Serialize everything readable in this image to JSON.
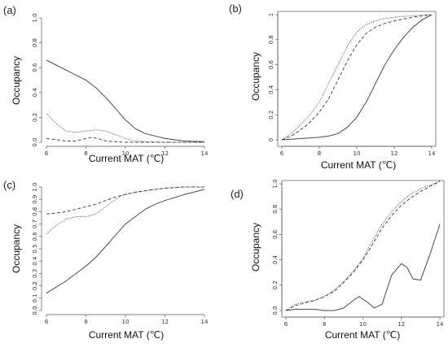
{
  "chart_data": [
    {
      "panel_label": "(a)",
      "type": "line",
      "xlabel": "Current MAT (℃)",
      "ylabel": "Occupancy",
      "xlim": [
        6,
        14
      ],
      "ylim": [
        0,
        1
      ],
      "xticks": [
        6,
        8,
        10,
        12,
        14
      ],
      "yticks": [
        0,
        0.2,
        0.4,
        0.6,
        0.8,
        1.0
      ],
      "ytick_labels": [
        "0.0",
        "0.2",
        "0.4",
        "0.6",
        "0.8",
        "1.0"
      ],
      "box": false,
      "series": [
        {
          "style": "solid",
          "x": [
            6,
            7,
            8,
            8.5,
            9,
            9.5,
            10,
            10.5,
            11,
            11.5,
            12,
            13,
            14
          ],
          "y": [
            0.66,
            0.58,
            0.5,
            0.44,
            0.36,
            0.27,
            0.18,
            0.11,
            0.07,
            0.05,
            0.03,
            0.01,
            0.005
          ]
        },
        {
          "style": "dotted",
          "x": [
            6,
            6.5,
            7,
            7.5,
            8,
            8.5,
            9,
            9.5,
            10,
            10.5,
            11,
            12,
            13,
            14
          ],
          "y": [
            0.23,
            0.15,
            0.09,
            0.08,
            0.09,
            0.1,
            0.09,
            0.06,
            0.03,
            0.01,
            0.005,
            0,
            0,
            0
          ]
        },
        {
          "style": "dashed",
          "x": [
            6,
            6.5,
            7,
            7.5,
            8,
            8.3,
            8.6,
            9,
            9.5,
            10,
            11,
            12,
            14
          ],
          "y": [
            0.03,
            0.02,
            0.01,
            0.01,
            0.03,
            0.04,
            0.03,
            0.01,
            0.005,
            0,
            0,
            0,
            0
          ]
        }
      ]
    },
    {
      "panel_label": "(b)",
      "type": "line",
      "xlabel": "Current MAT (℃)",
      "ylabel": "Occupancy",
      "xlim": [
        6,
        14
      ],
      "ylim": [
        0,
        1
      ],
      "xticks": [
        6,
        8,
        10,
        12,
        14
      ],
      "yticks": [
        0,
        0.2,
        0.4,
        0.6,
        0.8,
        1.0
      ],
      "ytick_labels": [
        "0",
        "0.2",
        "0.4",
        "0.6",
        "0.8",
        "1"
      ],
      "box": true,
      "series": [
        {
          "style": "solid",
          "x": [
            6,
            7,
            8,
            8.5,
            9,
            9.5,
            10,
            10.5,
            11,
            11.5,
            12,
            12.5,
            13,
            13.5,
            14
          ],
          "y": [
            0.0,
            0.01,
            0.02,
            0.03,
            0.05,
            0.1,
            0.18,
            0.3,
            0.45,
            0.6,
            0.72,
            0.82,
            0.9,
            0.96,
            1.0
          ]
        },
        {
          "style": "dotted",
          "x": [
            6,
            6.5,
            7,
            7.5,
            8,
            8.5,
            9,
            9.5,
            10,
            10.5,
            11,
            11.5,
            12,
            13,
            14
          ],
          "y": [
            0.0,
            0.05,
            0.12,
            0.2,
            0.3,
            0.45,
            0.6,
            0.75,
            0.86,
            0.92,
            0.95,
            0.97,
            0.98,
            0.99,
            1.0
          ]
        },
        {
          "style": "dashed",
          "x": [
            6,
            6.5,
            7,
            7.5,
            8,
            8.5,
            9,
            9.5,
            10,
            10.5,
            11,
            11.5,
            12,
            13,
            14
          ],
          "y": [
            0.0,
            0.03,
            0.08,
            0.14,
            0.22,
            0.33,
            0.48,
            0.63,
            0.76,
            0.85,
            0.9,
            0.93,
            0.95,
            0.98,
            1.0
          ]
        }
      ]
    },
    {
      "panel_label": "(c)",
      "type": "line",
      "xlabel": "Current MAT (℃)",
      "ylabel": "Occupancy",
      "xlim": [
        6,
        14
      ],
      "ylim": [
        0,
        1
      ],
      "xticks": [
        6,
        8,
        10,
        12,
        14
      ],
      "yticks": [
        0,
        0.1,
        0.2,
        0.3,
        0.4,
        0.5,
        0.6,
        0.7,
        0.8,
        0.9,
        1.0
      ],
      "ytick_labels": [
        "0.0",
        "0.1",
        "0.2",
        "0.3",
        "0.4",
        "0.5",
        "0.6",
        "0.7",
        "0.8",
        "0.9",
        "1.0"
      ],
      "box": false,
      "series": [
        {
          "style": "solid",
          "x": [
            6,
            6.5,
            7,
            7.5,
            8,
            8.5,
            9,
            9.5,
            10,
            10.5,
            11,
            11.5,
            12,
            13,
            14
          ],
          "y": [
            0.14,
            0.19,
            0.24,
            0.3,
            0.36,
            0.43,
            0.52,
            0.61,
            0.7,
            0.76,
            0.82,
            0.86,
            0.89,
            0.94,
            0.98
          ]
        },
        {
          "style": "dotted",
          "x": [
            6,
            6.5,
            7,
            7.5,
            8,
            8.5,
            9,
            9.5,
            10,
            10.5,
            11,
            12,
            13,
            14
          ],
          "y": [
            0.62,
            0.69,
            0.74,
            0.76,
            0.76,
            0.78,
            0.84,
            0.9,
            0.94,
            0.96,
            0.97,
            0.99,
            1.0,
            1.0
          ]
        },
        {
          "style": "dashed",
          "x": [
            6,
            7,
            8,
            8.5,
            9,
            9.5,
            10,
            11,
            12,
            13,
            14
          ],
          "y": [
            0.78,
            0.8,
            0.84,
            0.86,
            0.89,
            0.92,
            0.94,
            0.97,
            0.99,
            1.0,
            1.0
          ]
        }
      ]
    },
    {
      "panel_label": "(d)",
      "type": "line",
      "xlabel": "Current MAT (℃)",
      "ylabel": "Occupancy",
      "xlim": [
        6,
        14
      ],
      "ylim": [
        0,
        1
      ],
      "xticks": [
        6,
        8,
        10,
        12,
        14
      ],
      "yticks": [
        0,
        0.2,
        0.4,
        0.6,
        0.8,
        1.0
      ],
      "ytick_labels": [
        "0.0",
        "0.2",
        "0.4",
        "0.6",
        "0.8",
        "1.0"
      ],
      "box": true,
      "series": [
        {
          "style": "solid",
          "x": [
            6,
            6.5,
            7,
            7.5,
            8,
            8.5,
            9,
            9.5,
            9.8,
            10.2,
            10.6,
            11,
            11.5,
            12,
            12.3,
            12.6,
            13,
            13.5,
            14
          ],
          "y": [
            0.0,
            0.01,
            0.01,
            0.01,
            0.0,
            0.0,
            0.02,
            0.08,
            0.11,
            0.07,
            0.02,
            0.05,
            0.28,
            0.37,
            0.34,
            0.25,
            0.24,
            0.45,
            0.68
          ]
        },
        {
          "style": "dotted",
          "x": [
            6,
            6.5,
            7,
            7.5,
            8,
            8.5,
            9,
            9.5,
            10,
            10.5,
            11,
            11.5,
            12,
            12.5,
            13,
            13.5,
            14
          ],
          "y": [
            0.0,
            0.05,
            0.07,
            0.08,
            0.11,
            0.16,
            0.23,
            0.31,
            0.41,
            0.55,
            0.68,
            0.78,
            0.86,
            0.92,
            0.96,
            0.99,
            1.02
          ]
        },
        {
          "style": "dashed",
          "x": [
            6,
            6.5,
            7,
            7.5,
            8,
            8.5,
            9,
            9.5,
            10,
            10.5,
            11,
            11.5,
            12,
            12.5,
            13,
            13.5,
            14
          ],
          "y": [
            0.0,
            0.04,
            0.06,
            0.08,
            0.11,
            0.15,
            0.22,
            0.3,
            0.4,
            0.52,
            0.65,
            0.75,
            0.83,
            0.89,
            0.94,
            0.98,
            1.02
          ]
        }
      ]
    }
  ]
}
